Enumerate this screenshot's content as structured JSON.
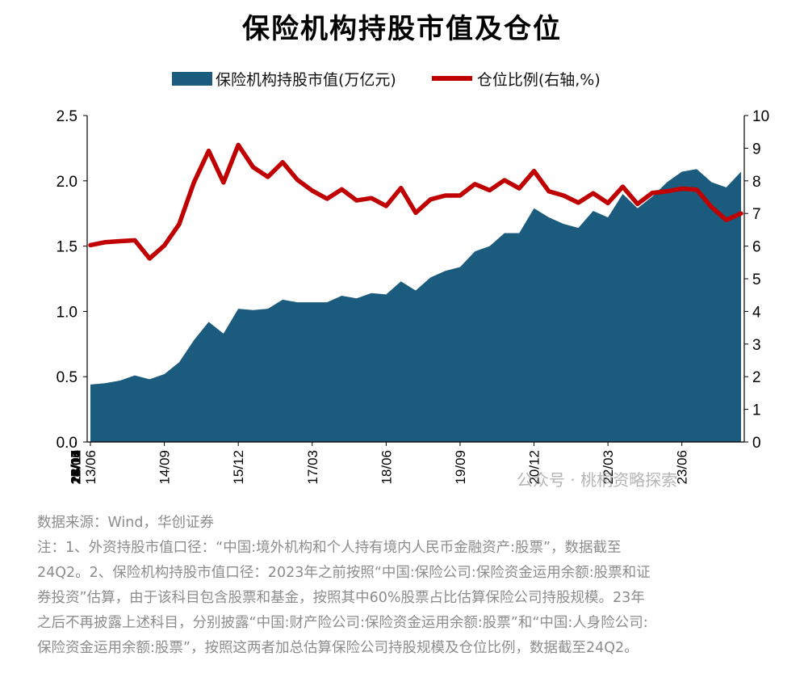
{
  "title": "保险机构持股市值及仓位",
  "legend": {
    "area_label": "保险机构持股市值(万亿元)",
    "line_label": "仓位比例(右轴,%)"
  },
  "colors": {
    "area": "#1b5b7d",
    "line": "#c00000",
    "axis": "#000000"
  },
  "chart_data": {
    "type": "area+line",
    "title": "保险机构持股市值及仓位",
    "x_tick_labels": [
      "13/06",
      "13/11",
      "14/04",
      "14/09",
      "15/02",
      "15/07",
      "15/12",
      "16/05",
      "16/10",
      "17/03",
      "17/08",
      "18/01",
      "18/06",
      "18/11",
      "19/04",
      "19/09",
      "20/02",
      "20/07",
      "20/12",
      "21/05",
      "21/10",
      "22/03",
      "22/08",
      "23/01",
      "23/06",
      "23/11",
      "24/04"
    ],
    "x": [
      "13/06",
      "13/09",
      "13/12",
      "14/03",
      "14/06",
      "14/09",
      "14/12",
      "15/03",
      "15/06",
      "15/09",
      "15/12",
      "16/03",
      "16/06",
      "16/09",
      "16/12",
      "17/03",
      "17/06",
      "17/09",
      "17/12",
      "18/03",
      "18/06",
      "18/09",
      "18/12",
      "19/03",
      "19/06",
      "19/09",
      "19/12",
      "20/03",
      "20/06",
      "20/09",
      "20/12",
      "21/03",
      "21/06",
      "21/09",
      "21/12",
      "22/03",
      "22/06",
      "22/09",
      "22/12",
      "23/03",
      "23/06",
      "23/09",
      "23/12",
      "24/03",
      "24/06"
    ],
    "series": [
      {
        "name": "保险机构持股市值(万亿元)",
        "type": "area",
        "axis": "left",
        "values": [
          0.44,
          0.45,
          0.47,
          0.51,
          0.48,
          0.52,
          0.61,
          0.78,
          0.92,
          0.83,
          1.02,
          1.01,
          1.02,
          1.09,
          1.07,
          1.07,
          1.07,
          1.12,
          1.1,
          1.14,
          1.13,
          1.23,
          1.16,
          1.26,
          1.31,
          1.34,
          1.46,
          1.5,
          1.6,
          1.6,
          1.79,
          1.72,
          1.67,
          1.64,
          1.77,
          1.72,
          1.9,
          1.79,
          1.88,
          1.99,
          2.07,
          2.09,
          1.99,
          1.95,
          2.07
        ]
      },
      {
        "name": "仓位比例(右轴,%)",
        "type": "line",
        "axis": "right",
        "values": [
          6.03,
          6.12,
          6.15,
          6.18,
          5.62,
          6.02,
          6.67,
          7.95,
          8.92,
          7.95,
          9.1,
          8.42,
          8.12,
          8.57,
          8.03,
          7.7,
          7.45,
          7.74,
          7.4,
          7.47,
          7.23,
          7.78,
          7.02,
          7.43,
          7.55,
          7.55,
          7.9,
          7.71,
          8.02,
          7.77,
          8.3,
          7.68,
          7.55,
          7.33,
          7.62,
          7.32,
          7.82,
          7.29,
          7.63,
          7.68,
          7.76,
          7.73,
          7.2,
          6.8,
          7.0
        ]
      }
    ],
    "y_left": {
      "ylim": [
        0,
        2.5
      ],
      "ticks": [
        "0.0",
        "0.5",
        "1.0",
        "1.5",
        "2.0",
        "2.5"
      ]
    },
    "y_right": {
      "ylim": [
        0,
        10
      ],
      "ticks": [
        "0",
        "1",
        "2",
        "3",
        "4",
        "5",
        "6",
        "7",
        "8",
        "9",
        "10"
      ]
    },
    "legend_position": "top-center",
    "grid": false
  },
  "watermark": "公众号 · 桃桐资略探索",
  "notes": {
    "source": "数据来源：Wind，华创证券",
    "line1": "注：1、外资持股市值口径：“中国:境外机构和个人持有境内人民币金融资产:股票”，数据截至",
    "line2": "24Q2。2、保险机构持股市值口径：2023年之前按照“中国:保险公司:保险资金运用余额:股票和证",
    "line3": "券投资”估算，由于该科目包含股票和基金，按照其中60%股票占比估算保险公司持股规模。23年",
    "line4": "之后不再披露上述科目，分别披露“中国:财产险公司:保险资金运用余额:股票”和“中国:人身险公司:",
    "line5": "保险资金运用余额:股票”，按照这两者加总估算保险公司持股规模及仓位比例，数据截至24Q2。"
  }
}
